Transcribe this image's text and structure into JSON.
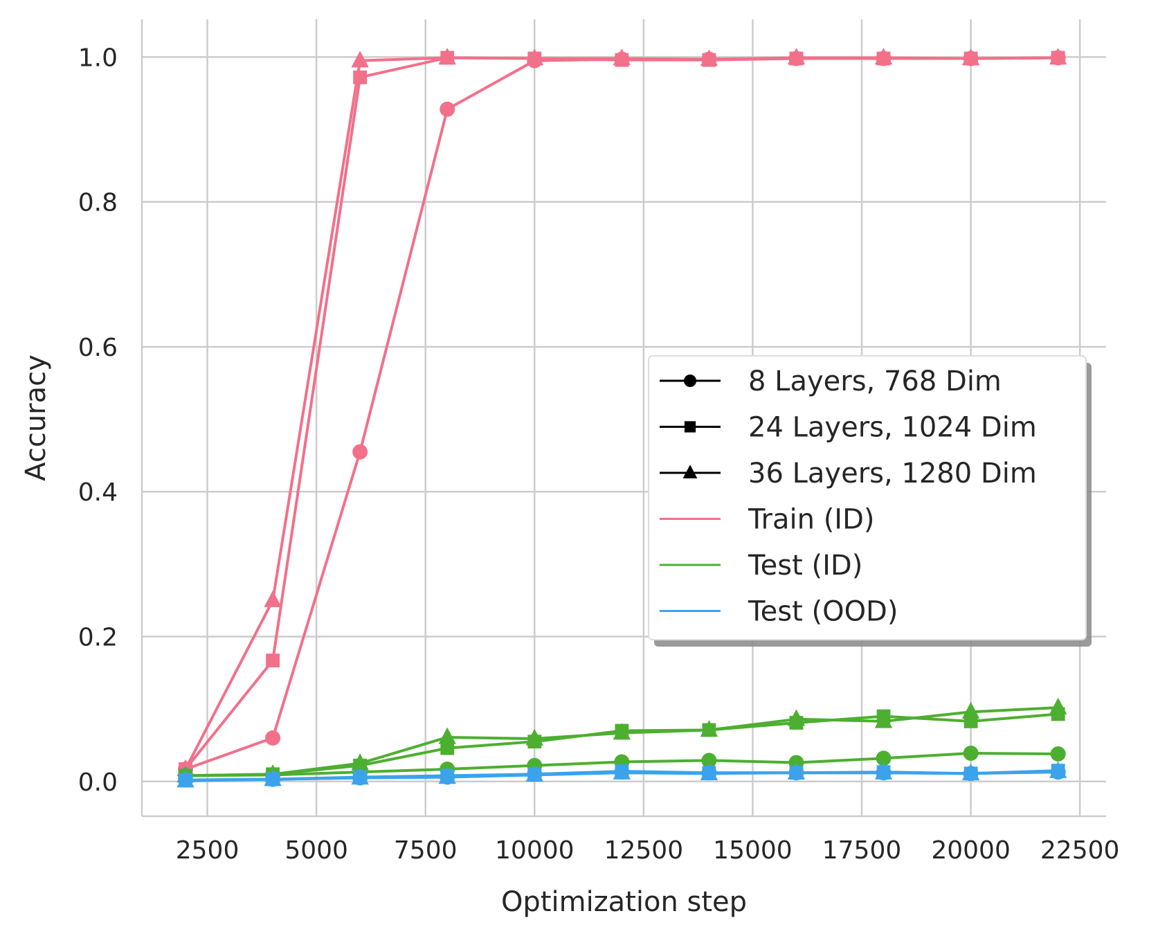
{
  "chart_data": {
    "type": "line",
    "xlabel": "Optimization step",
    "ylabel": "Accuracy",
    "xlim": [
      1000,
      23100
    ],
    "ylim": [
      -0.048,
      1.052
    ],
    "xticks": [
      2500,
      5000,
      7500,
      10000,
      12500,
      15000,
      17500,
      20000,
      22500
    ],
    "yticks": [
      0.0,
      0.2,
      0.4,
      0.6,
      0.8,
      1.0
    ],
    "ytick_labels": [
      "0.0",
      "0.2",
      "0.4",
      "0.6",
      "0.8",
      "1.0"
    ],
    "grid": true,
    "legend_position": "center-right",
    "x": [
      2000,
      4000,
      6000,
      8000,
      10000,
      12000,
      14000,
      16000,
      18000,
      20000,
      22000
    ],
    "colors": {
      "train": "#f2708a",
      "test_id": "#4daf30",
      "test_ood": "#3ba3ec"
    },
    "legend": [
      {
        "label": "8 Layers, 768 Dim",
        "marker": "circle",
        "color": "#000000"
      },
      {
        "label": "24 Layers, 1024 Dim",
        "marker": "square",
        "color": "#000000"
      },
      {
        "label": "36 Layers, 1280 Dim",
        "marker": "triangle",
        "color": "#000000"
      },
      {
        "label": "Train (ID)",
        "marker": "none",
        "color": "#f2708a"
      },
      {
        "label": "Test (ID)",
        "marker": "none",
        "color": "#4daf30"
      },
      {
        "label": "Test (OOD)",
        "marker": "none",
        "color": "#3ba3ec"
      }
    ],
    "series": [
      {
        "group": "Train (ID)",
        "model": "8 Layers, 768 Dim",
        "marker": "circle",
        "color": "#f2708a",
        "values": [
          0.017,
          0.06,
          0.455,
          0.928,
          0.995,
          0.997,
          0.997,
          0.998,
          0.998,
          0.998,
          0.999
        ]
      },
      {
        "group": "Train (ID)",
        "model": "24 Layers, 1024 Dim",
        "marker": "square",
        "color": "#f2708a",
        "values": [
          0.017,
          0.167,
          0.972,
          0.999,
          0.998,
          0.996,
          0.996,
          0.998,
          0.998,
          0.998,
          0.999
        ]
      },
      {
        "group": "Train (ID)",
        "model": "36 Layers, 1280 Dim",
        "marker": "triangle",
        "color": "#f2708a",
        "values": [
          0.017,
          0.25,
          0.995,
          0.999,
          0.998,
          0.998,
          0.997,
          0.999,
          0.999,
          0.998,
          0.999
        ]
      },
      {
        "group": "Test (ID)",
        "model": "8 Layers, 768 Dim",
        "marker": "circle",
        "color": "#4daf30",
        "values": [
          0.008,
          0.009,
          0.013,
          0.017,
          0.022,
          0.027,
          0.029,
          0.026,
          0.032,
          0.039,
          0.038
        ]
      },
      {
        "group": "Test (ID)",
        "model": "24 Layers, 1024 Dim",
        "marker": "square",
        "color": "#4daf30",
        "values": [
          0.008,
          0.01,
          0.022,
          0.046,
          0.055,
          0.07,
          0.071,
          0.081,
          0.09,
          0.083,
          0.093
        ]
      },
      {
        "group": "Test (ID)",
        "model": "36 Layers, 1280 Dim",
        "marker": "triangle",
        "color": "#4daf30",
        "values": [
          0.008,
          0.01,
          0.025,
          0.061,
          0.059,
          0.067,
          0.071,
          0.086,
          0.083,
          0.096,
          0.102
        ]
      },
      {
        "group": "Test (OOD)",
        "model": "8 Layers, 768 Dim",
        "marker": "circle",
        "color": "#3ba3ec",
        "values": [
          0.002,
          0.003,
          0.005,
          0.006,
          0.01,
          0.013,
          0.012,
          0.012,
          0.012,
          0.011,
          0.013
        ]
      },
      {
        "group": "Test (OOD)",
        "model": "24 Layers, 1024 Dim",
        "marker": "square",
        "color": "#3ba3ec",
        "values": [
          0.002,
          0.003,
          0.006,
          0.008,
          0.01,
          0.014,
          0.012,
          0.012,
          0.013,
          0.011,
          0.015
        ]
      },
      {
        "group": "Test (OOD)",
        "model": "36 Layers, 1280 Dim",
        "marker": "triangle",
        "color": "#3ba3ec",
        "values": [
          0.001,
          0.003,
          0.005,
          0.006,
          0.009,
          0.012,
          0.011,
          0.012,
          0.012,
          0.011,
          0.014
        ]
      }
    ]
  }
}
